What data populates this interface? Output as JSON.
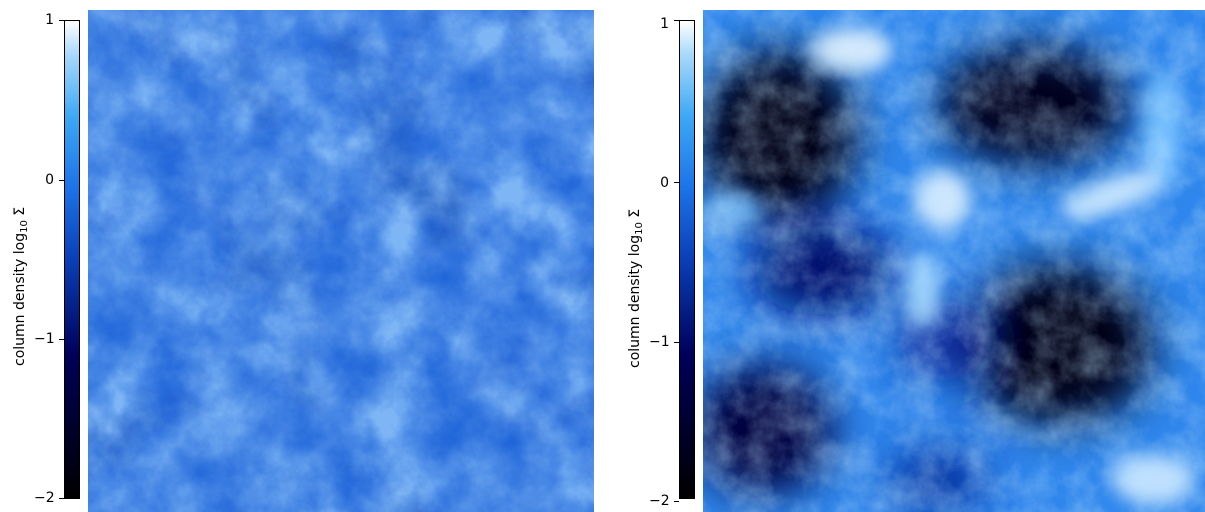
{
  "panels": [
    {
      "colorbar": {
        "ticks": [
          "1",
          "0",
          "−1",
          "−2"
        ],
        "label_text": "column density  log",
        "label_subscript": "10",
        "label_symbol": " Σ"
      }
    },
    {
      "colorbar": {
        "ticks": [
          "1",
          "0",
          "−1",
          "−2"
        ],
        "label_text": "column density  log",
        "label_subscript": "10",
        "label_symbol": " Σ"
      }
    }
  ],
  "colors": {
    "colormap": [
      "#000000",
      "#00005a",
      "#0a3fb7",
      "#1c73e8",
      "#3da8f5",
      "#a9d9fb",
      "#ffffff"
    ]
  }
}
